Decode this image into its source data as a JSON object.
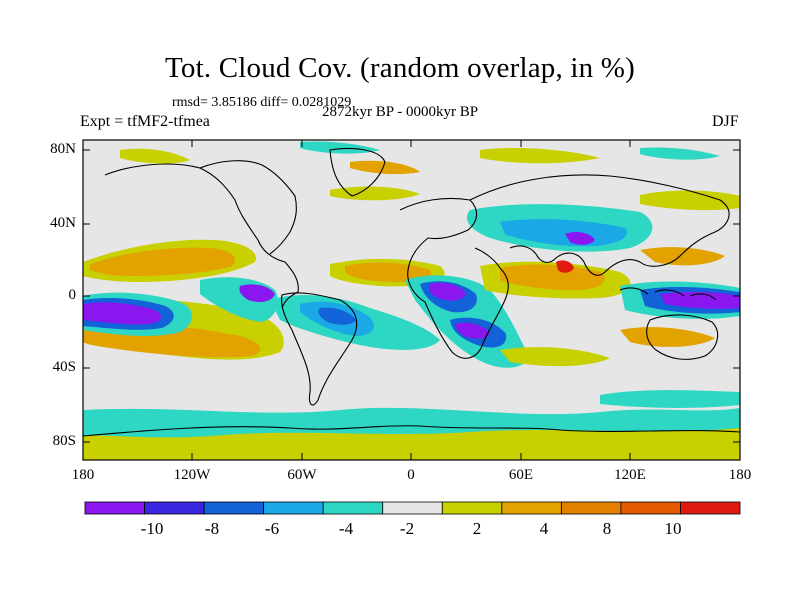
{
  "title": "Tot. Cloud Cov. (random overlap, in %)",
  "stats": "rmsd= 3.85186 diff= 0.0281029",
  "experiment": "Expt = tfMF2-tfmea",
  "period": "2872kyr BP - 0000kyr BP",
  "season": "DJF",
  "axes": {
    "lat_labels": [
      "80N",
      "40N",
      "0",
      "40S",
      "80S"
    ],
    "lon_labels": [
      "180",
      "120W",
      "60W",
      "0",
      "60E",
      "120E",
      "180"
    ]
  },
  "colorbar": {
    "labels": [
      "-10",
      "-8",
      "-6",
      "-4",
      "-2",
      "2",
      "4",
      "8",
      "10"
    ],
    "colors": [
      "#8a16f0",
      "#3a26e0",
      "#1262d8",
      "#1aa8e6",
      "#2ed6c4",
      "#e6e6e6",
      "#c8d000",
      "#e2a200",
      "#e38000",
      "#e45a00",
      "#e01a10"
    ]
  },
  "chart_data": {
    "type": "heatmap",
    "title": "Tot. Cloud Cov. (random overlap, in %)",
    "xlabel": "",
    "ylabel": "",
    "xlim": [
      -180,
      180
    ],
    "ylim": [
      -90,
      90
    ],
    "levels": [
      -12,
      -10,
      -8,
      -6,
      -4,
      -2,
      2,
      4,
      6,
      8,
      10
    ],
    "rmsd": 3.85186,
    "diff": 0.0281029,
    "regions": [
      {
        "level": -12,
        "lon": [
          -180,
          -140
        ],
        "lat": [
          -25,
          -5
        ]
      },
      {
        "level": -12,
        "lon": [
          -100,
          -80
        ],
        "lat": [
          -5,
          5
        ]
      },
      {
        "level": -12,
        "lon": [
          5,
          35
        ],
        "lat": [
          -10,
          5
        ]
      },
      {
        "level": -12,
        "lon": [
          120,
          180
        ],
        "lat": [
          -5,
          2
        ]
      },
      {
        "level": -6,
        "lon": [
          -60,
          -20
        ],
        "lat": [
          -25,
          -8
        ]
      },
      {
        "level": -6,
        "lon": [
          -20,
          40
        ],
        "lat": [
          -35,
          -12
        ]
      },
      {
        "level": -6,
        "lon": [
          40,
          135
        ],
        "lat": [
          25,
          45
        ]
      },
      {
        "level": 6,
        "lon": [
          -170,
          -100
        ],
        "lat": [
          8,
          25
        ]
      },
      {
        "level": 6,
        "lon": [
          -180,
          -100
        ],
        "lat": [
          -40,
          -25
        ]
      },
      {
        "level": 6,
        "lon": [
          -30,
          40
        ],
        "lat": [
          10,
          22
        ]
      },
      {
        "level": 6,
        "lon": [
          35,
          100
        ],
        "lat": [
          -5,
          10
        ]
      },
      {
        "level": 8,
        "lon": [
          70,
          110
        ],
        "lat": [
          5,
          22
        ]
      },
      {
        "level": -4,
        "lon": [
          -180,
          180
        ],
        "lat": [
          -70,
          -55
        ]
      },
      {
        "level": 4,
        "lon": [
          -180,
          180
        ],
        "lat": [
          -90,
          -72
        ]
      }
    ]
  }
}
